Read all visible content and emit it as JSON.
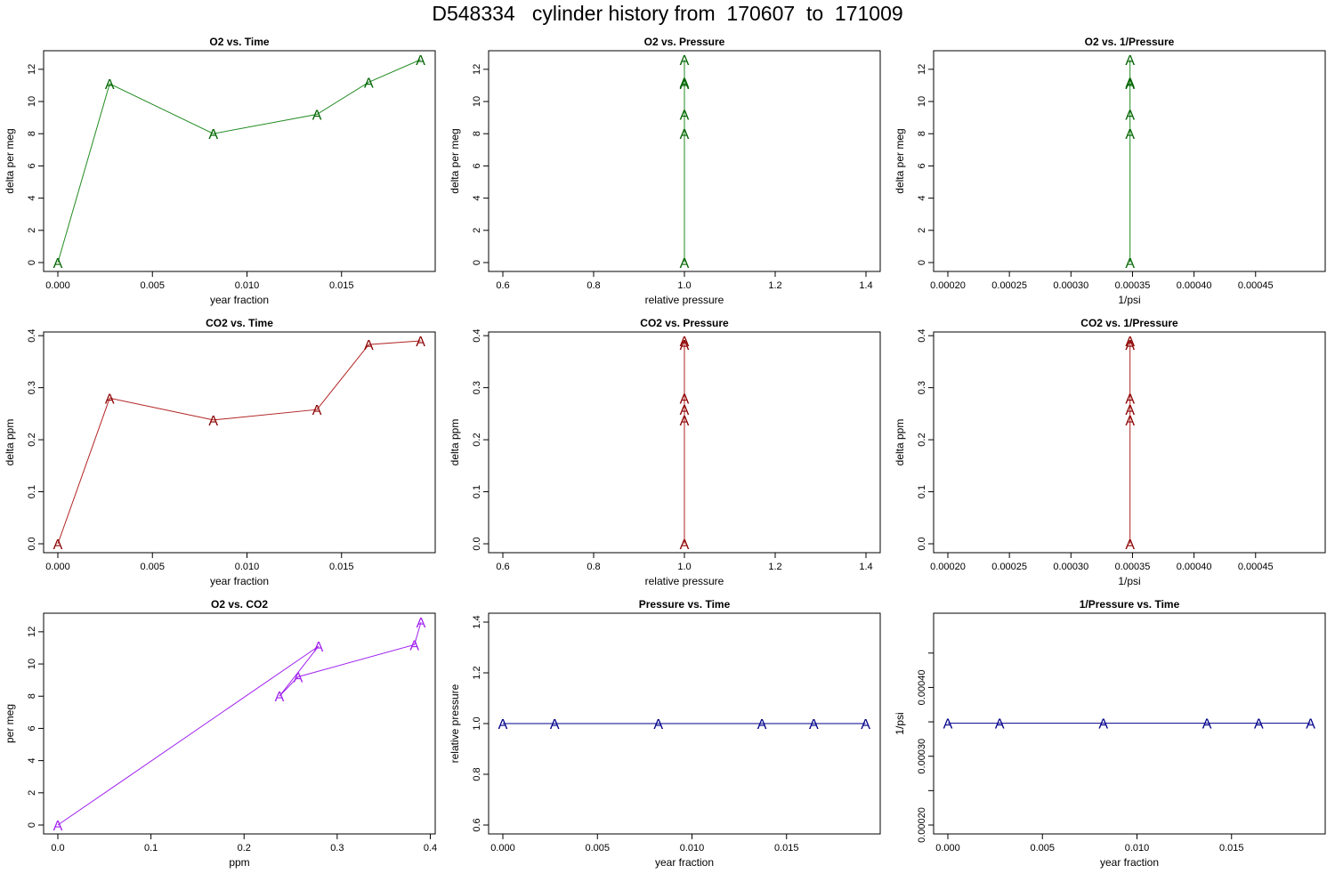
{
  "page": {
    "title": "D548334   cylinder history from  170607  to  171009"
  },
  "colors": {
    "o2": "#006400",
    "co2": "#8b0000",
    "o2_co2": "#a020f0",
    "pressure": "#00008b",
    "line_o2": "#228b22",
    "line_co2": "#b22222",
    "line_o2_co2": "#a020f0",
    "line_pressure": "#00008b"
  },
  "chart_data": [
    {
      "type": "line",
      "title": "O2 vs. Time",
      "xlabel": "year fraction",
      "ylabel": "delta per meg",
      "marker": "A",
      "color_key": "o2",
      "line_key": "line_o2",
      "xlim": [
        0,
        0.0192
      ],
      "ylim": [
        0,
        12.6
      ],
      "xticks": [
        0.0,
        0.005,
        0.01,
        0.015
      ],
      "xtick_labels": [
        "0.000",
        "0.005",
        "0.010",
        "0.015"
      ],
      "yticks": [
        0,
        2,
        4,
        6,
        8,
        10,
        12
      ],
      "ytick_labels": [
        "0",
        "2",
        "4",
        "6",
        "8",
        "10",
        "12"
      ],
      "x": [
        0,
        0.00274,
        0.00822,
        0.0137,
        0.01644,
        0.01918
      ],
      "y": [
        0,
        11.1,
        8.0,
        9.2,
        11.2,
        12.6
      ]
    },
    {
      "type": "line",
      "title": "O2 vs. Pressure",
      "xlabel": "relative pressure",
      "ylabel": "delta per meg",
      "marker": "A",
      "color_key": "o2",
      "line_key": "line_o2",
      "xlim": [
        0.6,
        1.4
      ],
      "ylim": [
        0,
        12.6
      ],
      "xticks": [
        0.6,
        0.8,
        1.0,
        1.2,
        1.4
      ],
      "xtick_labels": [
        "0.6",
        "0.8",
        "1.0",
        "1.2",
        "1.4"
      ],
      "yticks": [
        0,
        2,
        4,
        6,
        8,
        10,
        12
      ],
      "ytick_labels": [
        "0",
        "2",
        "4",
        "6",
        "8",
        "10",
        "12"
      ],
      "x": [
        1,
        1,
        1,
        1,
        1,
        1
      ],
      "y": [
        0,
        11.1,
        8.0,
        9.2,
        11.2,
        12.6
      ]
    },
    {
      "type": "line",
      "title": "O2 vs. 1/Pressure",
      "xlabel": "1/psi",
      "ylabel": "delta per meg",
      "marker": "A",
      "color_key": "o2",
      "line_key": "line_o2",
      "xlim": [
        0.0002,
        0.000495
      ],
      "ylim": [
        0,
        12.6
      ],
      "xticks": [
        0.0002,
        0.00025,
        0.0003,
        0.00035,
        0.0004,
        0.00045
      ],
      "xtick_labels": [
        "0.00020",
        "0.00025",
        "0.00030",
        "0.00035",
        "0.00040",
        "0.00045"
      ],
      "yticks": [
        0,
        2,
        4,
        6,
        8,
        10,
        12
      ],
      "ytick_labels": [
        "0",
        "2",
        "4",
        "6",
        "8",
        "10",
        "12"
      ],
      "x": [
        0.000348,
        0.000348,
        0.000348,
        0.000348,
        0.000348,
        0.000348
      ],
      "y": [
        0,
        11.1,
        8.0,
        9.2,
        11.2,
        12.6
      ]
    },
    {
      "type": "line",
      "title": "CO2 vs. Time",
      "xlabel": "year fraction",
      "ylabel": "delta ppm",
      "marker": "A",
      "color_key": "co2",
      "line_key": "line_co2",
      "xlim": [
        0,
        0.0192
      ],
      "ylim": [
        0,
        0.39
      ],
      "xticks": [
        0.0,
        0.005,
        0.01,
        0.015
      ],
      "xtick_labels": [
        "0.000",
        "0.005",
        "0.010",
        "0.015"
      ],
      "yticks": [
        0,
        0.1,
        0.2,
        0.3,
        0.4
      ],
      "ytick_labels": [
        "0.0",
        "0.1",
        "0.2",
        "0.3",
        "0.4"
      ],
      "x": [
        0,
        0.00274,
        0.00822,
        0.0137,
        0.01644,
        0.01918
      ],
      "y": [
        0,
        0.28,
        0.238,
        0.258,
        0.383,
        0.39
      ]
    },
    {
      "type": "line",
      "title": "CO2 vs. Pressure",
      "xlabel": "relative pressure",
      "ylabel": "delta ppm",
      "marker": "A",
      "color_key": "co2",
      "line_key": "line_co2",
      "xlim": [
        0.6,
        1.4
      ],
      "ylim": [
        0,
        0.39
      ],
      "xticks": [
        0.6,
        0.8,
        1.0,
        1.2,
        1.4
      ],
      "xtick_labels": [
        "0.6",
        "0.8",
        "1.0",
        "1.2",
        "1.4"
      ],
      "yticks": [
        0,
        0.1,
        0.2,
        0.3,
        0.4
      ],
      "ytick_labels": [
        "0.0",
        "0.1",
        "0.2",
        "0.3",
        "0.4"
      ],
      "x": [
        1,
        1,
        1,
        1,
        1,
        1
      ],
      "y": [
        0,
        0.28,
        0.238,
        0.258,
        0.383,
        0.39
      ]
    },
    {
      "type": "line",
      "title": "CO2 vs. 1/Pressure",
      "xlabel": "1/psi",
      "ylabel": "delta ppm",
      "marker": "A",
      "color_key": "co2",
      "line_key": "line_co2",
      "xlim": [
        0.0002,
        0.000495
      ],
      "ylim": [
        0,
        0.39
      ],
      "xticks": [
        0.0002,
        0.00025,
        0.0003,
        0.00035,
        0.0004,
        0.00045
      ],
      "xtick_labels": [
        "0.00020",
        "0.00025",
        "0.00030",
        "0.00035",
        "0.00040",
        "0.00045"
      ],
      "yticks": [
        0,
        0.1,
        0.2,
        0.3,
        0.4
      ],
      "ytick_labels": [
        "0.0",
        "0.1",
        "0.2",
        "0.3",
        "0.4"
      ],
      "x": [
        0.000348,
        0.000348,
        0.000348,
        0.000348,
        0.000348,
        0.000348
      ],
      "y": [
        0,
        0.28,
        0.238,
        0.258,
        0.383,
        0.39
      ]
    },
    {
      "type": "line",
      "title": "O2 vs. CO2",
      "xlabel": "ppm",
      "ylabel": "per meg",
      "marker": "A",
      "color_key": "o2_co2",
      "line_key": "line_o2_co2",
      "xlim": [
        0,
        0.39
      ],
      "ylim": [
        0,
        12.6
      ],
      "xticks": [
        0,
        0.1,
        0.2,
        0.3,
        0.4
      ],
      "xtick_labels": [
        "0.0",
        "0.1",
        "0.2",
        "0.3",
        "0.4"
      ],
      "yticks": [
        0,
        2,
        4,
        6,
        8,
        10,
        12
      ],
      "ytick_labels": [
        "0",
        "2",
        "4",
        "6",
        "8",
        "10",
        "12"
      ],
      "x": [
        0,
        0.28,
        0.238,
        0.258,
        0.383,
        0.39
      ],
      "y": [
        0,
        11.1,
        8.0,
        9.2,
        11.2,
        12.6
      ]
    },
    {
      "type": "line",
      "title": "Pressure vs. Time",
      "xlabel": "year fraction",
      "ylabel": "relative pressure",
      "marker": "A",
      "color_key": "pressure",
      "line_key": "line_pressure",
      "xlim": [
        0,
        0.0192
      ],
      "ylim": [
        0.6,
        1.4
      ],
      "xticks": [
        0.0,
        0.005,
        0.01,
        0.015
      ],
      "xtick_labels": [
        "0.000",
        "0.005",
        "0.010",
        "0.015"
      ],
      "yticks": [
        0.6,
        0.8,
        1.0,
        1.2,
        1.4
      ],
      "ytick_labels": [
        "0.6",
        "0.8",
        "1.0",
        "1.2",
        "1.4"
      ],
      "x": [
        0,
        0.00274,
        0.00822,
        0.0137,
        0.01644,
        0.01918
      ],
      "y": [
        1,
        1,
        1,
        1,
        1,
        1
      ]
    },
    {
      "type": "line",
      "title": "1/Pressure vs. Time",
      "xlabel": "year fraction",
      "ylabel": "1/psi",
      "marker": "A",
      "color_key": "pressure",
      "line_key": "line_pressure",
      "xlim": [
        0,
        0.0192
      ],
      "ylim": [
        0.0002,
        0.000495
      ],
      "xticks": [
        0.0,
        0.005,
        0.01,
        0.015
      ],
      "xtick_labels": [
        "0.000",
        "0.005",
        "0.010",
        "0.015"
      ],
      "yticks": [
        0.0002,
        0.00025,
        0.0003,
        0.00035,
        0.0004,
        0.00045
      ],
      "ytick_labels": [
        "0.00020",
        "",
        "0.00030",
        "",
        "0.00040",
        ""
      ],
      "x": [
        0,
        0.00274,
        0.00822,
        0.0137,
        0.01644,
        0.01918
      ],
      "y": [
        0.000348,
        0.000348,
        0.000348,
        0.000348,
        0.000348,
        0.000348
      ]
    }
  ]
}
